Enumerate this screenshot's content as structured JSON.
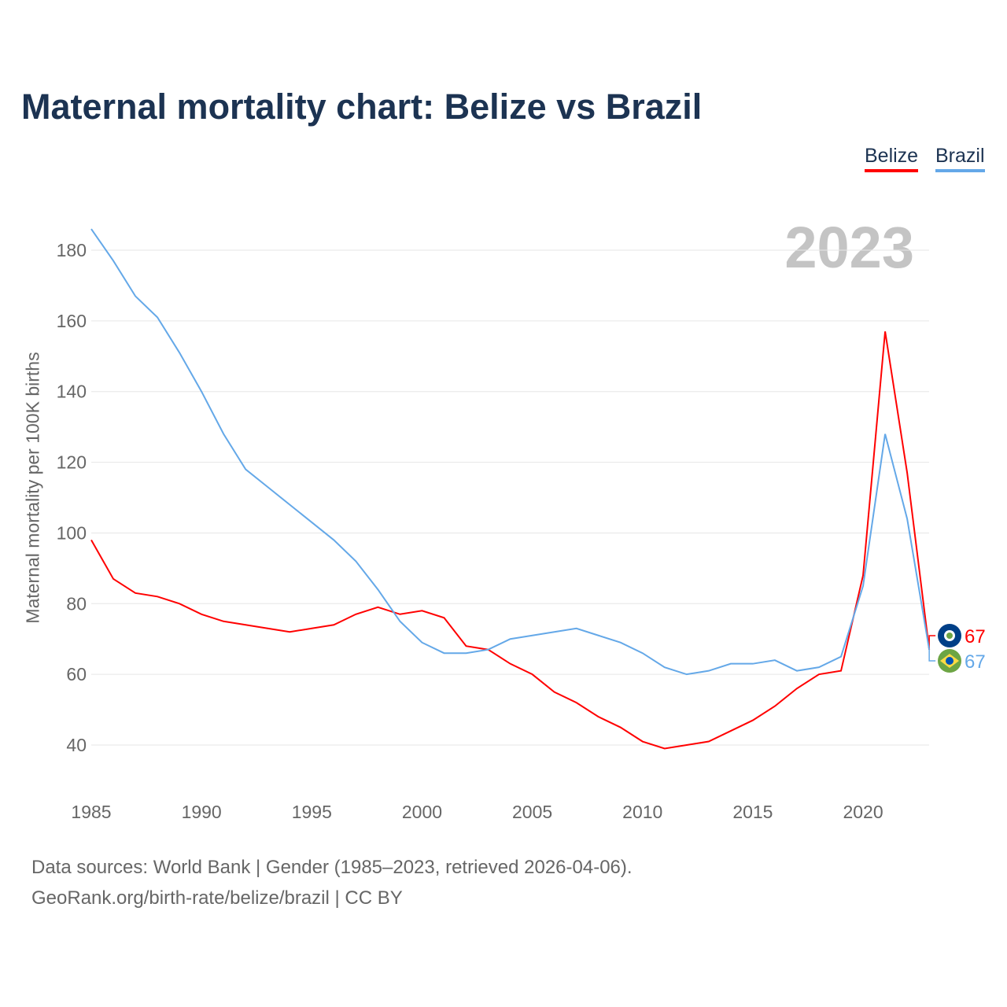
{
  "chart_data": {
    "type": "line",
    "title": "Maternal mortality chart: Belize vs Brazil",
    "ylabel": "Maternal mortality per 100K births",
    "xlabel": "",
    "current_year": "2023",
    "ylim": [
      28,
      190
    ],
    "xlim": [
      1985,
      2023
    ],
    "yticks": [
      "40",
      "60",
      "80",
      "100",
      "120",
      "140",
      "160",
      "180"
    ],
    "xticks": [
      "1985",
      "1990",
      "1995",
      "2000",
      "2005",
      "2010",
      "2015",
      "2020"
    ],
    "grid": true,
    "legend_placement": "top-right",
    "x": [
      1985,
      1986,
      1987,
      1988,
      1989,
      1990,
      1991,
      1992,
      1993,
      1994,
      1995,
      1996,
      1997,
      1998,
      1999,
      2000,
      2001,
      2002,
      2003,
      2004,
      2005,
      2006,
      2007,
      2008,
      2009,
      2010,
      2011,
      2012,
      2013,
      2014,
      2015,
      2016,
      2017,
      2018,
      2019,
      2020,
      2021,
      2022,
      2023
    ],
    "series": [
      {
        "name": "Belize",
        "color": "#ff0000",
        "end_label": "67",
        "values": [
          98,
          87,
          83,
          82,
          80,
          77,
          75,
          74,
          73,
          72,
          73,
          74,
          77,
          79,
          77,
          78,
          76,
          68,
          67,
          63,
          60,
          55,
          52,
          48,
          45,
          41,
          39,
          40,
          41,
          44,
          47,
          51,
          56,
          60,
          61,
          88,
          157,
          117,
          67
        ]
      },
      {
        "name": "Brazil",
        "color": "#64a8e8",
        "end_label": "67",
        "values": [
          186,
          177,
          167,
          161,
          151,
          140,
          128,
          118,
          113,
          108,
          103,
          98,
          92,
          84,
          75,
          69,
          66,
          66,
          67,
          70,
          71,
          72,
          73,
          71,
          69,
          66,
          62,
          60,
          61,
          63,
          63,
          64,
          61,
          62,
          65,
          85,
          128,
          104,
          67
        ]
      }
    ]
  },
  "footer": {
    "line1": "Data sources: World Bank | Gender (1985–2023, retrieved 2026-04-06).",
    "line2": "GeoRank.org/birth-rate/belize/brazil | CC BY"
  }
}
